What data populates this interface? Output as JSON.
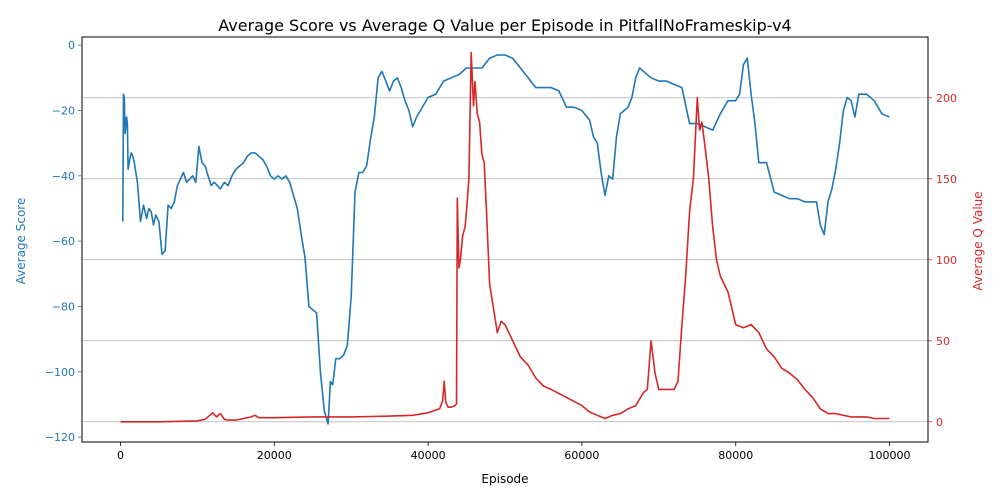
{
  "chart_data": {
    "type": "line",
    "title": "Average Score vs Average Q Value per Episode in PitfallNoFrameskip-v4",
    "xlabel": "Episode",
    "ylabel_left": "Average Score",
    "ylabel_right": "Average Q Value",
    "xlim": [
      -5000,
      105000
    ],
    "ylim_left": [
      -121.5,
      2.5
    ],
    "ylim_right": [
      -12.5,
      237.5
    ],
    "x_ticks": [
      0,
      20000,
      40000,
      60000,
      80000,
      100000
    ],
    "x_tick_labels": [
      "0",
      "20000",
      "40000",
      "60000",
      "80000",
      "100000"
    ],
    "y_left_ticks": [
      0,
      -20,
      -40,
      -60,
      -80,
      -100,
      -120
    ],
    "y_left_tick_labels": [
      "0",
      "−20",
      "−40",
      "−60",
      "−80",
      "−100",
      "−120"
    ],
    "y_right_ticks": [
      0,
      50,
      100,
      150,
      200
    ],
    "y_right_tick_labels": [
      "0",
      "50",
      "100",
      "150",
      "200"
    ],
    "grid": "horizontal, right axis",
    "colors": {
      "score": "#1f77b4",
      "q": "#d62728",
      "grid": "#b0b0b0",
      "text": "#000000"
    },
    "series": [
      {
        "name": "Average Score",
        "axis": "left",
        "x": [
          300,
          400,
          500,
          600,
          700,
          800,
          900,
          1000,
          1200,
          1400,
          1600,
          1800,
          2200,
          2600,
          3000,
          3400,
          3700,
          4000,
          4300,
          4600,
          5000,
          5400,
          5800,
          6200,
          6600,
          7000,
          7400,
          7800,
          8200,
          8600,
          9000,
          9400,
          9800,
          10200,
          10600,
          11000,
          11400,
          11800,
          12200,
          12600,
          13000,
          13500,
          14000,
          14500,
          15000,
          15500,
          16000,
          16500,
          17000,
          17500,
          18000,
          18500,
          19000,
          19500,
          20000,
          20500,
          21000,
          21500,
          22000,
          22500,
          23000,
          23500,
          24000,
          24500,
          25000,
          25500,
          26000,
          26500,
          27000,
          27300,
          27600,
          28000,
          28500,
          29000,
          29500,
          30000,
          30500,
          31000,
          31500,
          32000,
          32500,
          33000,
          33500,
          34000,
          34500,
          35000,
          35500,
          36000,
          36500,
          37000,
          37500,
          38000,
          38500,
          39000,
          39500,
          40000,
          41000,
          42000,
          43000,
          44000,
          45000,
          46000,
          47000,
          48000,
          49000,
          50000,
          51000,
          52000,
          53000,
          54000,
          55000,
          56000,
          57000,
          58000,
          59000,
          60000,
          61000,
          61500,
          62000,
          62500,
          63000,
          63500,
          64000,
          64500,
          65000,
          65500,
          66000,
          66500,
          67000,
          67500,
          68000,
          69000,
          70000,
          71000,
          72000,
          73000,
          74000,
          75000,
          76000,
          77000,
          78000,
          79000,
          80000,
          80500,
          81000,
          81500,
          82000,
          82500,
          83000,
          84000,
          85000,
          86000,
          87000,
          88000,
          89000,
          90000,
          90500,
          91000,
          91500,
          92000,
          92500,
          93000,
          93500,
          94000,
          94500,
          95000,
          95500,
          96000,
          97000,
          98000,
          99000,
          100000
        ],
        "values": [
          -54,
          -15,
          -16,
          -27,
          -25,
          -22,
          -24,
          -38,
          -35,
          -33,
          -34,
          -36,
          -42,
          -54,
          -49,
          -53,
          -50,
          -51,
          -55,
          -52,
          -54,
          -64,
          -63,
          -49,
          -50,
          -48,
          -43,
          -41,
          -39,
          -42,
          -41,
          -40,
          -42,
          -31,
          -36,
          -37,
          -40,
          -43,
          -42,
          -43,
          -44,
          -42,
          -43,
          -40,
          -38,
          -37,
          -36,
          -34,
          -33,
          -33,
          -34,
          -35,
          -37,
          -40,
          -41,
          -40,
          -41,
          -40,
          -42,
          -46,
          -50,
          -58,
          -65,
          -80,
          -81,
          -82,
          -100,
          -112,
          -116,
          -103,
          -104,
          -96,
          -96,
          -95,
          -92,
          -77,
          -45,
          -39,
          -39,
          -37,
          -29,
          -22,
          -10,
          -8,
          -11,
          -14,
          -11,
          -10,
          -13,
          -17,
          -20,
          -25,
          -22,
          -20,
          -18,
          -16,
          -15,
          -11,
          -10,
          -9,
          -7,
          -7,
          -7,
          -4,
          -3,
          -3,
          -4,
          -7,
          -10,
          -13,
          -13,
          -13,
          -14,
          -19,
          -19,
          -20,
          -23,
          -28,
          -30,
          -39,
          -46,
          -40,
          -41,
          -28,
          -21,
          -20,
          -19,
          -16,
          -10,
          -7,
          -8,
          -10,
          -11,
          -11,
          -12,
          -13,
          -24,
          -24,
          -25,
          -26,
          -21,
          -17,
          -17,
          -15,
          -6,
          -4,
          -15,
          -24,
          -36,
          -36,
          -45,
          -46,
          -47,
          -47,
          -48,
          -48,
          -48,
          -55,
          -58,
          -48,
          -44,
          -38,
          -30,
          -20,
          -16,
          -17,
          -22,
          -15,
          -15,
          -17,
          -21,
          -22
        ]
      },
      {
        "name": "Average Q Value",
        "axis": "right",
        "x": [
          0,
          5000,
          10000,
          11000,
          12000,
          12500,
          13000,
          13500,
          14000,
          15000,
          16000,
          17000,
          17500,
          18000,
          20000,
          25000,
          30000,
          35000,
          38000,
          40000,
          41500,
          41900,
          42100,
          42300,
          42600,
          43000,
          43500,
          43700,
          43800,
          44000,
          44200,
          44500,
          44800,
          45000,
          45300,
          45600,
          45900,
          46100,
          46400,
          46700,
          47000,
          47300,
          47600,
          48000,
          48500,
          49000,
          49500,
          50000,
          50500,
          51000,
          52000,
          53000,
          54000,
          55000,
          56000,
          58000,
          60000,
          61000,
          62000,
          63000,
          64000,
          65000,
          66000,
          67000,
          68000,
          68500,
          69000,
          69500,
          70000,
          71000,
          72000,
          72500,
          73000,
          73500,
          74000,
          74500,
          75000,
          75300,
          75600,
          76000,
          76500,
          77000,
          77500,
          78000,
          79000,
          80000,
          81000,
          82000,
          83000,
          84000,
          85000,
          86000,
          87000,
          88000,
          89000,
          90000,
          91000,
          92000,
          93000,
          94000,
          95000,
          96000,
          97000,
          98000,
          99000,
          100000
        ],
        "values": [
          0,
          0,
          0.5,
          1.5,
          5.5,
          3,
          5,
          1.5,
          1,
          1,
          2,
          3,
          4,
          2.5,
          2.5,
          3,
          3,
          3.5,
          4,
          5.5,
          8,
          13,
          25,
          12,
          9,
          9,
          10,
          11,
          138,
          95,
          100,
          115,
          120,
          130,
          150,
          228,
          195,
          210,
          190,
          185,
          165,
          160,
          130,
          85,
          70,
          55,
          62,
          60,
          55,
          50,
          40,
          35,
          27,
          22,
          20,
          15,
          10,
          6,
          4,
          2,
          4,
          5,
          8,
          10,
          18,
          20,
          50,
          30,
          20,
          20,
          20,
          25,
          60,
          90,
          130,
          150,
          200,
          180,
          185,
          170,
          150,
          120,
          100,
          90,
          80,
          60,
          58,
          60,
          55,
          45,
          40,
          33,
          30,
          26,
          20,
          15,
          8,
          5,
          5,
          4,
          3,
          3,
          3,
          2,
          2,
          2
        ]
      }
    ]
  }
}
